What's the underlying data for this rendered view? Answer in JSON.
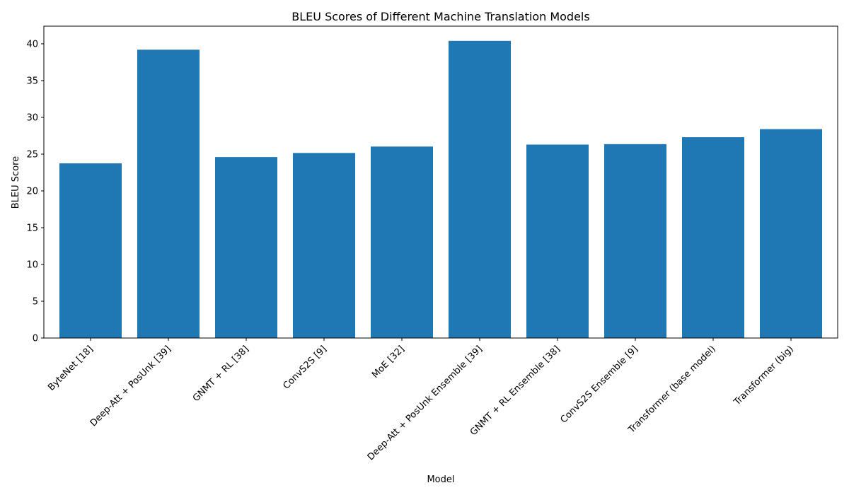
{
  "chart_data": {
    "type": "bar",
    "title": "BLEU Scores of Different Machine Translation Models",
    "xlabel": "Model",
    "ylabel": "BLEU Score",
    "categories": [
      "ByteNet [18]",
      "Deep-Att + PosUnk [39]",
      "GNMT + RL [38]",
      "ConvS2S [9]",
      "MoE [32]",
      "Deep-Att + PosUnk Ensemble [39]",
      "GNMT + RL Ensemble [38]",
      "ConvS2S Ensemble [9]",
      "Transformer (base model)",
      "Transformer (big)"
    ],
    "values": [
      23.75,
      39.2,
      24.6,
      25.16,
      26.03,
      40.4,
      26.3,
      26.36,
      27.3,
      28.4
    ],
    "ylim": [
      0,
      42.4
    ],
    "yticks": [
      0,
      5,
      10,
      15,
      20,
      25,
      30,
      35,
      40
    ],
    "bar_color": "#1f77b4",
    "grid": false,
    "legend": "none"
  }
}
